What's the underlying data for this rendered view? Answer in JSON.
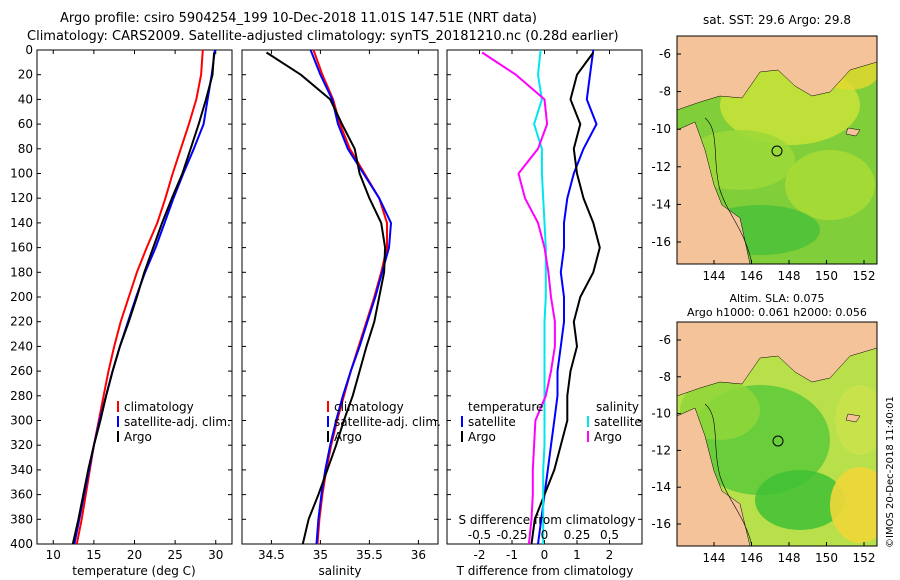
{
  "header": {
    "line1": "Argo profile: csiro 5904254_199 10-Dec-2018 11.01S 147.51E (NRT data)",
    "line2": "Climatology: CARS2009. Satellite-adjusted climatology: synTS_20181210.nc (0.28d earlier)"
  },
  "colors": {
    "climatology": "#ff0000",
    "satellite": "#0000ff",
    "argo": "#000000",
    "sat_salinity": "#00e5ee",
    "argo_salinity": "#ff00ff",
    "land": "#f5c39a"
  },
  "chart_data": [
    {
      "type": "line",
      "title": "",
      "xlabel": "temperature (deg C)",
      "ylabel": "",
      "xlim": [
        8,
        32
      ],
      "ylim": [
        400,
        0
      ],
      "xticks": [
        10,
        15,
        20,
        25,
        30
      ],
      "xtick_labels": [
        "10",
        "15",
        "20",
        "25",
        "30"
      ],
      "yticks": [
        0,
        20,
        40,
        60,
        80,
        100,
        120,
        140,
        160,
        180,
        200,
        220,
        240,
        260,
        280,
        300,
        320,
        340,
        360,
        380,
        400
      ],
      "ytick_labels": [
        "0",
        "20",
        "40",
        "60",
        "80",
        "100",
        "120",
        "140",
        "160",
        "180",
        "200",
        "220",
        "240",
        "260",
        "280",
        "300",
        "320",
        "340",
        "360",
        "380",
        "400"
      ],
      "legend": [
        "climatology",
        "satellite-adj. clim.",
        "Argo"
      ],
      "series": [
        {
          "name": "climatology",
          "color": "#ff0000",
          "x": [
            28.4,
            28.2,
            27.6,
            26.7,
            25.7,
            24.7,
            23.8,
            22.8,
            21.5,
            20.3,
            19.3,
            18.3,
            17.5,
            16.8,
            16.2,
            15.6,
            15.0,
            14.5,
            14.0,
            13.5,
            12.9
          ],
          "y": [
            0,
            20,
            40,
            60,
            80,
            100,
            120,
            140,
            160,
            180,
            200,
            220,
            240,
            260,
            280,
            300,
            320,
            340,
            360,
            380,
            400
          ]
        },
        {
          "name": "satellite-adj. clim.",
          "color": "#0000ff",
          "x": [
            29.9,
            29.5,
            29.0,
            28.5,
            27.3,
            26.0,
            24.8,
            23.7,
            22.6,
            21.3,
            20.2,
            19.2,
            18.2,
            17.3,
            16.5,
            15.7,
            15.0,
            14.4,
            13.8,
            13.2,
            12.6
          ],
          "y": [
            0,
            20,
            40,
            60,
            80,
            100,
            120,
            140,
            160,
            180,
            200,
            220,
            240,
            260,
            280,
            300,
            320,
            340,
            360,
            380,
            400
          ]
        },
        {
          "name": "Argo",
          "color": "#000000",
          "x": [
            29.8,
            29.6,
            28.8,
            27.9,
            26.9,
            25.9,
            24.6,
            23.4,
            22.3,
            21.2,
            20.3,
            19.3,
            18.2,
            17.3,
            16.5,
            15.8,
            15.0,
            14.3,
            13.7,
            13.1,
            12.4
          ],
          "y": [
            2,
            20,
            40,
            60,
            80,
            100,
            120,
            140,
            160,
            180,
            200,
            220,
            240,
            260,
            280,
            300,
            320,
            340,
            360,
            380,
            400
          ]
        }
      ]
    },
    {
      "type": "line",
      "title": "",
      "xlabel": "salinity",
      "ylabel": "",
      "xlim": [
        34.2,
        36.2
      ],
      "ylim": [
        400,
        0
      ],
      "xticks": [
        34.5,
        35,
        35.5,
        36
      ],
      "xtick_labels": [
        "34.5",
        "35",
        "35.5",
        "36"
      ],
      "legend": [
        "climatology",
        "satellite-adj. clim.",
        "Argo"
      ],
      "series": [
        {
          "name": "climatology",
          "color": "#ff0000",
          "x": [
            34.93,
            35.02,
            35.13,
            35.2,
            35.3,
            35.45,
            35.6,
            35.68,
            35.68,
            35.62,
            35.55,
            35.47,
            35.39,
            35.31,
            35.24,
            35.17,
            35.11,
            35.06,
            35.02,
            34.99,
            34.97
          ],
          "y": [
            0,
            20,
            40,
            60,
            80,
            100,
            120,
            140,
            160,
            180,
            200,
            220,
            240,
            260,
            280,
            300,
            320,
            340,
            360,
            380,
            400
          ]
        },
        {
          "name": "satellite-adj. clim.",
          "color": "#0000ff",
          "x": [
            34.9,
            35.0,
            35.12,
            35.18,
            35.28,
            35.44,
            35.6,
            35.72,
            35.7,
            35.63,
            35.56,
            35.48,
            35.4,
            35.31,
            35.23,
            35.16,
            35.1,
            35.05,
            35.01,
            34.98,
            34.96
          ],
          "y": [
            0,
            20,
            40,
            60,
            80,
            100,
            120,
            140,
            160,
            180,
            200,
            220,
            240,
            260,
            280,
            300,
            320,
            340,
            360,
            380,
            400
          ]
        },
        {
          "name": "Argo",
          "color": "#000000",
          "x": [
            34.45,
            34.8,
            35.1,
            35.22,
            35.35,
            35.4,
            35.5,
            35.62,
            35.66,
            35.65,
            35.6,
            35.55,
            35.47,
            35.4,
            35.33,
            35.24,
            35.16,
            35.07,
            34.98,
            34.88,
            34.82
          ],
          "y": [
            2,
            20,
            40,
            60,
            80,
            100,
            120,
            140,
            160,
            180,
            200,
            220,
            240,
            260,
            280,
            300,
            320,
            340,
            360,
            380,
            400
          ]
        }
      ]
    },
    {
      "type": "line",
      "title": "S difference from climatology",
      "xlabel": "T difference from climatology",
      "ylabel": "",
      "xlim": [
        -3,
        3
      ],
      "ylim": [
        400,
        0
      ],
      "xticks": [
        -2,
        -1,
        0,
        1,
        2
      ],
      "xtick_labels": [
        "-2",
        "-1",
        "0",
        "1",
        "2"
      ],
      "top_axis_ticks": [
        -0.5,
        -0.25,
        0,
        0.25,
        0.5
      ],
      "top_axis_tick_labels": [
        "-0.5",
        "-0.25",
        "0",
        "0.25",
        "0.5"
      ],
      "legend_titles": [
        "temperature",
        "salinity"
      ],
      "legend": [
        "satellite",
        "Argo",
        "satellite",
        "Argo"
      ],
      "series": [
        {
          "name": "temperature satellite",
          "color": "#0000ff",
          "x": [
            1.5,
            1.4,
            1.3,
            1.6,
            1.2,
            0.9,
            0.7,
            0.6,
            0.6,
            0.5,
            0.6,
            0.6,
            0.5,
            0.4,
            0.4,
            0.3,
            0.2,
            0.1,
            0.0,
            -0.1,
            -0.2
          ],
          "y": [
            0,
            20,
            40,
            60,
            80,
            100,
            120,
            140,
            160,
            180,
            200,
            220,
            240,
            260,
            280,
            300,
            320,
            340,
            360,
            380,
            400
          ]
        },
        {
          "name": "temperature Argo",
          "color": "#000000",
          "x": [
            1.5,
            1.0,
            0.8,
            1.1,
            0.9,
            1.0,
            1.2,
            1.5,
            1.7,
            1.5,
            1.1,
            0.9,
            1.0,
            0.8,
            0.7,
            0.7,
            0.5,
            0.3,
            0.0,
            -0.3,
            -0.4
          ],
          "y": [
            2,
            20,
            40,
            60,
            80,
            100,
            120,
            140,
            160,
            180,
            200,
            220,
            240,
            260,
            280,
            300,
            320,
            340,
            360,
            380,
            400
          ]
        },
        {
          "name": "salinity satellite",
          "color": "#00e5ee",
          "x": [
            -0.03,
            -0.05,
            -0.02,
            -0.08,
            -0.02,
            -0.02,
            -0.01,
            0.0,
            0.01,
            0.01,
            0.01,
            0.0,
            0.0,
            0.0,
            0.0,
            0.0,
            0.0,
            -0.01,
            -0.01,
            -0.01,
            -0.01
          ],
          "y": [
            0,
            20,
            40,
            60,
            80,
            100,
            120,
            140,
            160,
            180,
            200,
            220,
            240,
            260,
            280,
            300,
            320,
            340,
            360,
            380,
            400
          ]
        },
        {
          "name": "salinity Argo",
          "color": "#ff00ff",
          "x": [
            -0.48,
            -0.22,
            0.0,
            0.02,
            -0.05,
            -0.2,
            -0.15,
            -0.05,
            0.0,
            0.03,
            0.05,
            0.08,
            0.08,
            0.05,
            0.01,
            -0.07,
            -0.08,
            -0.09,
            -0.09,
            -0.1,
            -0.12
          ],
          "y": [
            2,
            20,
            40,
            60,
            80,
            100,
            120,
            140,
            160,
            180,
            200,
            220,
            240,
            260,
            280,
            300,
            320,
            340,
            360,
            380,
            400
          ]
        }
      ]
    }
  ],
  "maps": {
    "sst": {
      "title": "sat. SST: 29.6 Argo: 29.8",
      "xticks": [
        "144",
        "146",
        "148",
        "150",
        "152"
      ],
      "yticks": [
        "-6",
        "-8",
        "-10",
        "-12",
        "-14",
        "-16"
      ]
    },
    "sla": {
      "title_line1": "Altim. SLA: 0.075",
      "title_line2": "Argo h1000: 0.061 h2000: 0.056",
      "xticks": [
        "144",
        "146",
        "148",
        "150",
        "152"
      ],
      "yticks": [
        "-6",
        "-8",
        "-10",
        "-12",
        "-14",
        "-16"
      ]
    }
  },
  "footer": {
    "credit": "©IMOS 20-Dec-2018 11:40:01"
  }
}
